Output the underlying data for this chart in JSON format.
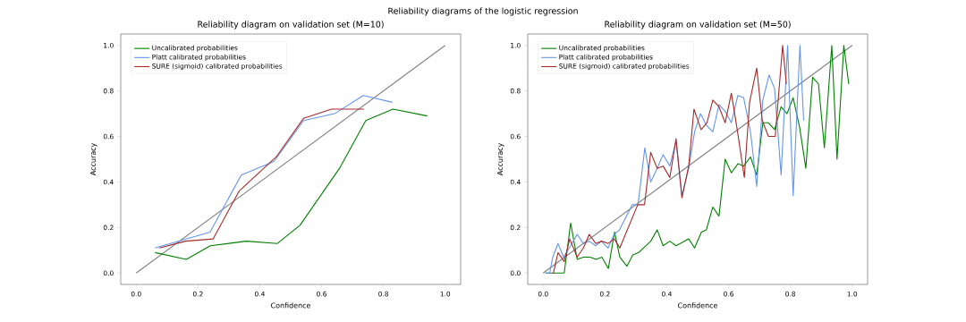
{
  "chart_data": [
    {
      "type": "line",
      "title": "Reliability diagram on validation set (M=10)",
      "xlabel": "Confidence",
      "ylabel": "Accuracy",
      "annotations": [
        "Reliability diagrams of the logistic regression"
      ],
      "xlim": [
        -0.05,
        1.05
      ],
      "ylim": [
        -0.05,
        1.05
      ],
      "xticks": [
        {
          "value": 0,
          "label": "0.0"
        },
        {
          "value": 0.2,
          "label": "0.2"
        },
        {
          "value": 0.4,
          "label": "0.4"
        },
        {
          "value": 0.6,
          "label": "0.6"
        },
        {
          "value": 0.8,
          "label": "0.8"
        },
        {
          "value": 1,
          "label": "1.0"
        }
      ],
      "yticks": [
        {
          "value": 0,
          "label": "0.0"
        },
        {
          "value": 0.2,
          "label": "0.2"
        },
        {
          "value": 0.4,
          "label": "0.4"
        },
        {
          "value": 0.6,
          "label": "0.6"
        },
        {
          "value": 0.8,
          "label": "0.8"
        },
        {
          "value": 1,
          "label": "1.0"
        }
      ],
      "legend": "top left",
      "series": [
        {
          "color": "#808080",
          "x": [
            0,
            1
          ],
          "values": [
            0,
            1
          ]
        },
        {
          "name": "Uncalibrated probabilities",
          "color": "#008000",
          "x": [
            0.061,
            0.162,
            0.24,
            0.356,
            0.457,
            0.53,
            0.658,
            0.743,
            0.831,
            0.942
          ],
          "values": [
            0.09,
            0.06,
            0.12,
            0.14,
            0.13,
            0.21,
            0.46,
            0.67,
            0.72,
            0.69
          ]
        },
        {
          "name": "Platt calibrated probabilities",
          "color": "#6495ed",
          "x": [
            0.061,
            0.239,
            0.34,
            0.446,
            0.542,
            0.642,
            0.735,
            0.829
          ],
          "values": [
            0.11,
            0.18,
            0.43,
            0.49,
            0.67,
            0.7,
            0.78,
            0.75
          ]
        },
        {
          "name": "SURE (sigmoid) calibrated probabilities",
          "color": "#a52a2a",
          "x": [
            0.075,
            0.16,
            0.249,
            0.333,
            0.453,
            0.542,
            0.632,
            0.737
          ],
          "values": [
            0.11,
            0.14,
            0.15,
            0.36,
            0.51,
            0.68,
            0.72,
            0.72
          ]
        }
      ]
    },
    {
      "type": "line",
      "title": "Reliability diagram on validation set (M=50)",
      "xlabel": "Confidence",
      "ylabel": "Accuracy",
      "xlim": [
        -0.05,
        1.05
      ],
      "ylim": [
        -0.05,
        1.05
      ],
      "xticks": [
        {
          "value": 0,
          "label": "0.0"
        },
        {
          "value": 0.2,
          "label": "0.2"
        },
        {
          "value": 0.4,
          "label": "0.4"
        },
        {
          "value": 0.6,
          "label": "0.6"
        },
        {
          "value": 0.8,
          "label": "0.8"
        },
        {
          "value": 1,
          "label": "1.0"
        }
      ],
      "yticks": [
        {
          "value": 0,
          "label": "0.0"
        },
        {
          "value": 0.2,
          "label": "0.2"
        },
        {
          "value": 0.4,
          "label": "0.4"
        },
        {
          "value": 0.6,
          "label": "0.6"
        },
        {
          "value": 0.8,
          "label": "0.8"
        },
        {
          "value": 1,
          "label": "1.0"
        }
      ],
      "legend": "top left",
      "series": [
        {
          "color": "#808080",
          "x": [
            0,
            1
          ],
          "values": [
            0,
            1
          ]
        },
        {
          "name": "Uncalibrated probabilities",
          "color": "#008000",
          "x": [
            0.007,
            0.068,
            0.089,
            0.11,
            0.13,
            0.152,
            0.171,
            0.19,
            0.211,
            0.231,
            0.248,
            0.271,
            0.29,
            0.309,
            0.348,
            0.369,
            0.388,
            0.41,
            0.43,
            0.471,
            0.49,
            0.512,
            0.528,
            0.549,
            0.569,
            0.589,
            0.609,
            0.63,
            0.649,
            0.671,
            0.691,
            0.711,
            0.729,
            0.749,
            0.77,
            0.789,
            0.809,
            0.83,
            0.85,
            0.872,
            0.891,
            0.91,
            0.934,
            0.951,
            0.973,
            0.989
          ],
          "values": [
            0,
            0,
            0.22,
            0.06,
            0.07,
            0.07,
            0.06,
            0.07,
            0.02,
            0.18,
            0.07,
            0.03,
            0.08,
            0.09,
            0.14,
            0.19,
            0.12,
            0.14,
            0.12,
            0.15,
            0.11,
            0.18,
            0.19,
            0.29,
            0.25,
            0.5,
            0.44,
            0.48,
            0.47,
            0.51,
            0.43,
            0.66,
            0.66,
            0.63,
            0.73,
            0.7,
            0.77,
            0.64,
            0.46,
            0.86,
            0.83,
            0.55,
            1.0,
            0.5,
            1.0,
            0.83
          ]
        },
        {
          "name": "Platt calibrated probabilities",
          "color": "#6495ed",
          "x": [
            0.007,
            0.021,
            0.031,
            0.048,
            0.066,
            0.089,
            0.11,
            0.13,
            0.149,
            0.17,
            0.188,
            0.21,
            0.23,
            0.247,
            0.288,
            0.307,
            0.329,
            0.348,
            0.369,
            0.388,
            0.41,
            0.43,
            0.449,
            0.471,
            0.49,
            0.509,
            0.528,
            0.549,
            0.569,
            0.589,
            0.609,
            0.63,
            0.649,
            0.671,
            0.691,
            0.711,
            0.731,
            0.749,
            0.77,
            0.791,
            0.809,
            0.831,
            0.843
          ],
          "values": [
            0,
            0,
            0.07,
            0.13,
            0.07,
            0.12,
            0.17,
            0.13,
            0.14,
            0.12,
            0.14,
            0.11,
            0.17,
            0.19,
            0.3,
            0.3,
            0.55,
            0.4,
            0.46,
            0.52,
            0.47,
            0.58,
            0.34,
            0.46,
            0.62,
            0.7,
            0.65,
            0.62,
            0.74,
            0.71,
            0.66,
            0.78,
            0.77,
            0.62,
            0.38,
            0.76,
            0.87,
            0.81,
            0.43,
            1.0,
            0.34,
            1.0,
            0.67
          ]
        },
        {
          "name": "SURE (sigmoid) calibrated probabilities",
          "color": "#a52a2a",
          "x": [
            0.033,
            0.048,
            0.068,
            0.086,
            0.11,
            0.13,
            0.149,
            0.17,
            0.19,
            0.21,
            0.23,
            0.248,
            0.306,
            0.328,
            0.348,
            0.369,
            0.388,
            0.41,
            0.43,
            0.449,
            0.471,
            0.488,
            0.511,
            0.53,
            0.549,
            0.569,
            0.589,
            0.609,
            0.628,
            0.651,
            0.668,
            0.691,
            0.709,
            0.729,
            0.751,
            0.775,
            0.787
          ],
          "values": [
            0,
            0.09,
            0.05,
            0.15,
            0.07,
            0.11,
            0.17,
            0.13,
            0.14,
            0.13,
            0.15,
            0.11,
            0.3,
            0.3,
            0.53,
            0.46,
            0.47,
            0.42,
            0.59,
            0.33,
            0.47,
            0.72,
            0.63,
            0.66,
            0.76,
            0.73,
            0.66,
            0.79,
            0.63,
            0.42,
            0.75,
            0.9,
            0.67,
            0.6,
            0.6,
            1.0,
            0.83
          ]
        }
      ]
    }
  ]
}
